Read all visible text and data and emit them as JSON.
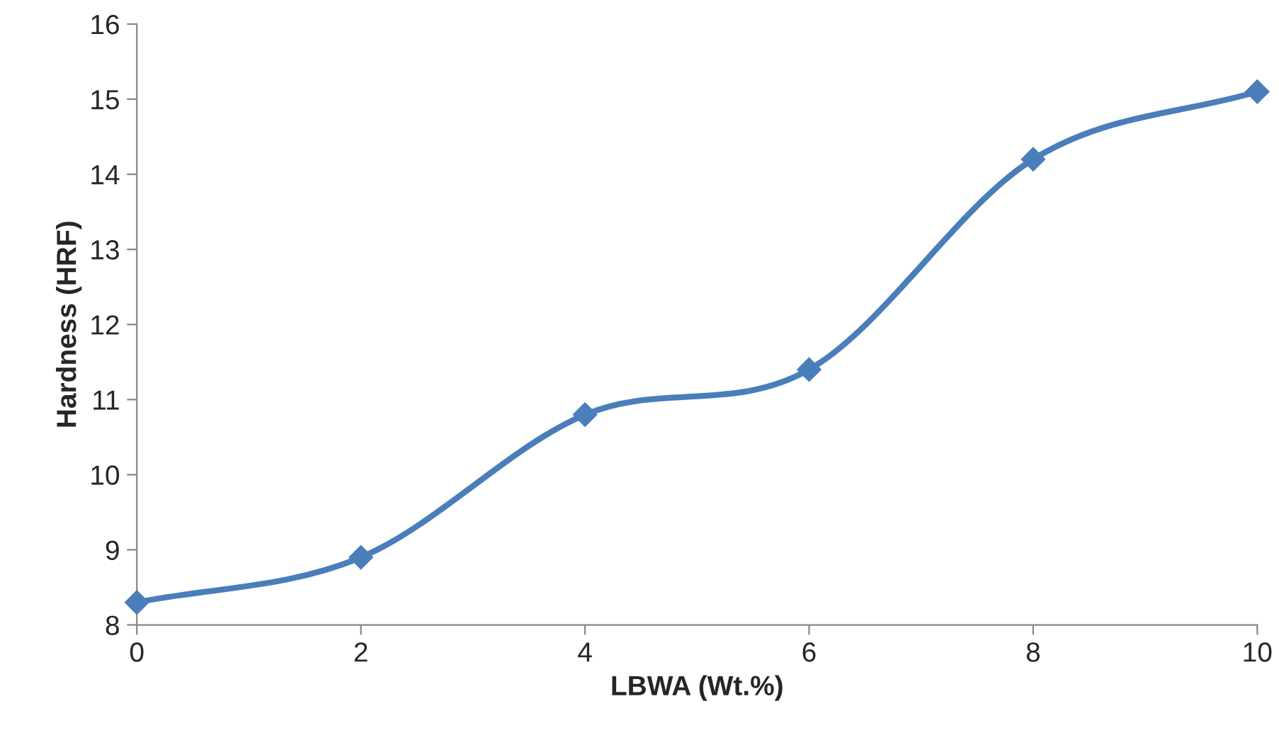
{
  "chart_data": {
    "type": "line",
    "xlabel": "LBWA (Wt.%)",
    "ylabel": "Hardness (HRF)",
    "x": [
      0,
      2,
      4,
      6,
      8,
      10
    ],
    "series": [
      {
        "color": "#4a7ebb",
        "values": [
          8.3,
          8.9,
          10.8,
          11.4,
          14.2,
          15.1
        ]
      }
    ],
    "xlim": [
      0,
      10
    ],
    "xticks": [
      0,
      2,
      4,
      6,
      8,
      10
    ],
    "ylim": [
      8,
      16
    ],
    "yticks": [
      8,
      9,
      10,
      11,
      12,
      13,
      14,
      15,
      16
    ],
    "grid": false,
    "legend": false,
    "marker": "diamond",
    "line_style": "solid"
  }
}
